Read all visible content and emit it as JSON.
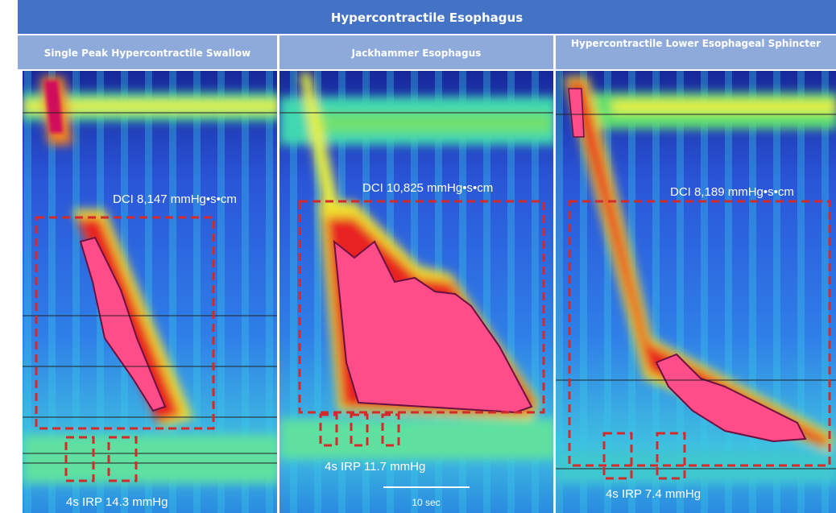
{
  "header": {
    "title": "Hypercontractile Esophagus"
  },
  "panels": [
    {
      "title": "Single Peak Hypercontractile Swallow",
      "dci": "DCI 8,147 mmHg•s•cm",
      "irp": "4s IRP 14.3 mmHg"
    },
    {
      "title": "Jackhammer Esophagus",
      "dci": "DCI 10,825 mmHg•s•cm",
      "irp": "4s IRP 11.7 mmHg",
      "scale": "10 sec"
    },
    {
      "title": "Hypercontractile Lower Esophageal Sphincter",
      "dci": "DCI 8,189 mmHg•s•cm",
      "irp": "4s IRP 7.4 mmHg"
    }
  ]
}
